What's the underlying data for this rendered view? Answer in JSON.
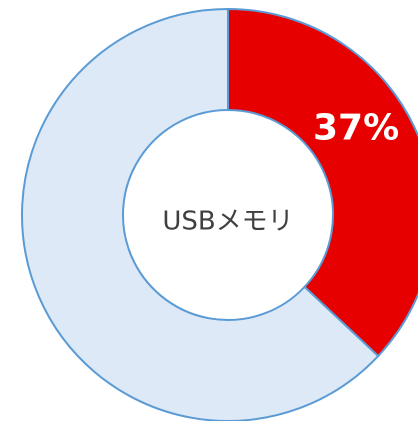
{
  "chart_data": {
    "type": "donut",
    "center_label": "USBメモリ",
    "categories": [
      null,
      null
    ],
    "values": [
      37,
      63
    ],
    "value_labels": [
      "37%",
      null
    ],
    "colors": [
      "#e60000",
      "#dde9f6"
    ],
    "edge_color": "#5b9bd5"
  }
}
